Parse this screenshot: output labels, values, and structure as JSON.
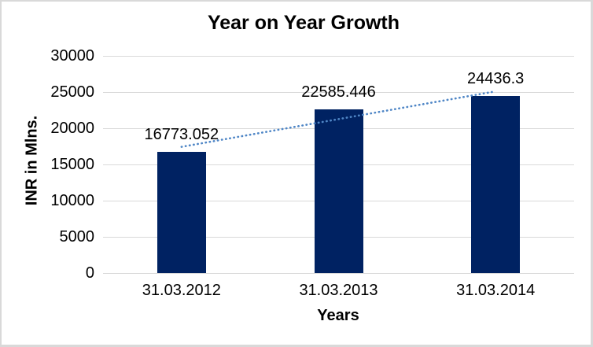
{
  "frame": {
    "background_color": "#ffffff",
    "border_color": "#d9d9d9"
  },
  "chart_data": {
    "type": "bar",
    "title": "Year on Year Growth",
    "xlabel": "Years",
    "ylabel": "INR in Mlns.",
    "categories": [
      "31.03.2012",
      "31.03.2013",
      "31.03.2014"
    ],
    "values": [
      16773.052,
      22585.446,
      24436.3
    ],
    "data_labels": [
      "16773.052",
      "22585.446",
      "24436.3"
    ],
    "y_ticks": [
      0,
      5000,
      10000,
      15000,
      20000,
      25000,
      30000
    ],
    "y_tick_labels": [
      "0",
      "5000",
      "10000",
      "15000",
      "20000",
      "25000",
      "30000"
    ],
    "ylim": [
      0,
      30000
    ],
    "grid": "horizontal",
    "gridline_color": "#d9d9d9",
    "legend": "none",
    "bar_color": "#002262",
    "trendline": {
      "style": "dotted",
      "fit": "linear",
      "color": "#4f86c6"
    }
  }
}
